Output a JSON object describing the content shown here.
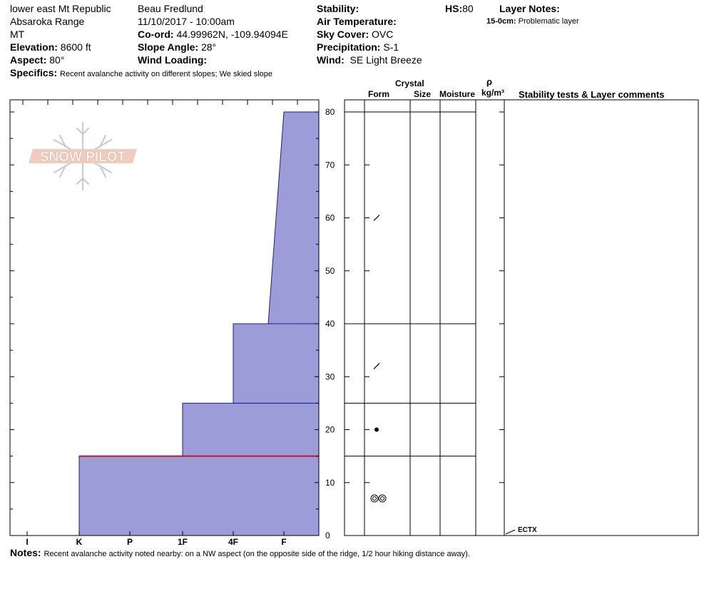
{
  "header": {
    "location": "lower east Mt Republic",
    "range": "Absaroka Range",
    "state": "MT",
    "elevation_label": "Elevation:",
    "elevation": "8600 ft",
    "aspect_label": "Aspect:",
    "aspect": "80°",
    "specifics_label": "Specifics:",
    "specifics": "Recent avalanche activity on different slopes;  We skied slope",
    "observer": "Beau  Fredlund",
    "datetime": "11/10/2017 - 10:00am",
    "coord_label": "Co-ord:",
    "coord": "44.99962N, -109.94094E",
    "slope_label": "Slope Angle:",
    "slope": "28°",
    "wind_loading_label": "Wind Loading:",
    "stability_label": "Stability:",
    "air_temp_label": "Air Temperature:",
    "sky_label": "Sky Cover:",
    "sky": "OVC",
    "precip_label": "Precipitation:",
    "precip": "S-1",
    "wind_label": "Wind:",
    "wind": "SE  Light Breeze",
    "hs_label": "HS:",
    "hs": "80",
    "layer_notes_label": "Layer Notes:",
    "layer_note_depth": "15-0cm:",
    "layer_note_text": "Problematic layer"
  },
  "columns": {
    "crystal": "Crystal",
    "form": "Form",
    "size": "Size",
    "moisture": "Moisture",
    "rho": "ρ",
    "density_unit": "kg/m³",
    "stability": "Stability tests & Layer comments"
  },
  "logo_text": "SNOW PILOT",
  "test_label": "ECTX",
  "notes_label": "Notes:",
  "notes": "Recent avalanche activity noted nearby: on a NW aspect (on the opposite side of the ridge, 1/2 hour hiking distance away).",
  "colors": {
    "profile_fill": "#9c9cd8",
    "profile_stroke": "#1a1a9c",
    "problem_line": "#c0182c"
  },
  "chart_data": {
    "type": "area",
    "x_categories": [
      "I",
      "K",
      "P",
      "1F",
      "4F",
      "F"
    ],
    "y_ticks": [
      0,
      10,
      20,
      30,
      40,
      50,
      60,
      70,
      80
    ],
    "ylim": [
      0,
      80
    ],
    "hardness_profile": [
      {
        "bottom": 0,
        "top": 15,
        "hardness_bottom": "K",
        "hardness_top": "K"
      },
      {
        "bottom": 15,
        "top": 25,
        "hardness_bottom": "1F",
        "hardness_top": "1F"
      },
      {
        "bottom": 25,
        "top": 40,
        "hardness_bottom": "4F",
        "hardness_top": "4F"
      },
      {
        "bottom": 40,
        "top": 80,
        "hardness_bottom": "4F-",
        "hardness_top": "F+"
      }
    ],
    "layer_boundaries": [
      80,
      40,
      25,
      15
    ],
    "problem_layer": 15,
    "grain_forms": [
      {
        "depth": 60,
        "form": "decomposing fragments"
      },
      {
        "depth": 32,
        "form": "decomposing fragments"
      },
      {
        "depth": 20,
        "form": "rounded grains"
      },
      {
        "depth": 7,
        "form": "melt forms"
      }
    ],
    "stability_test": {
      "depth": 0,
      "label": "ECTX"
    }
  }
}
